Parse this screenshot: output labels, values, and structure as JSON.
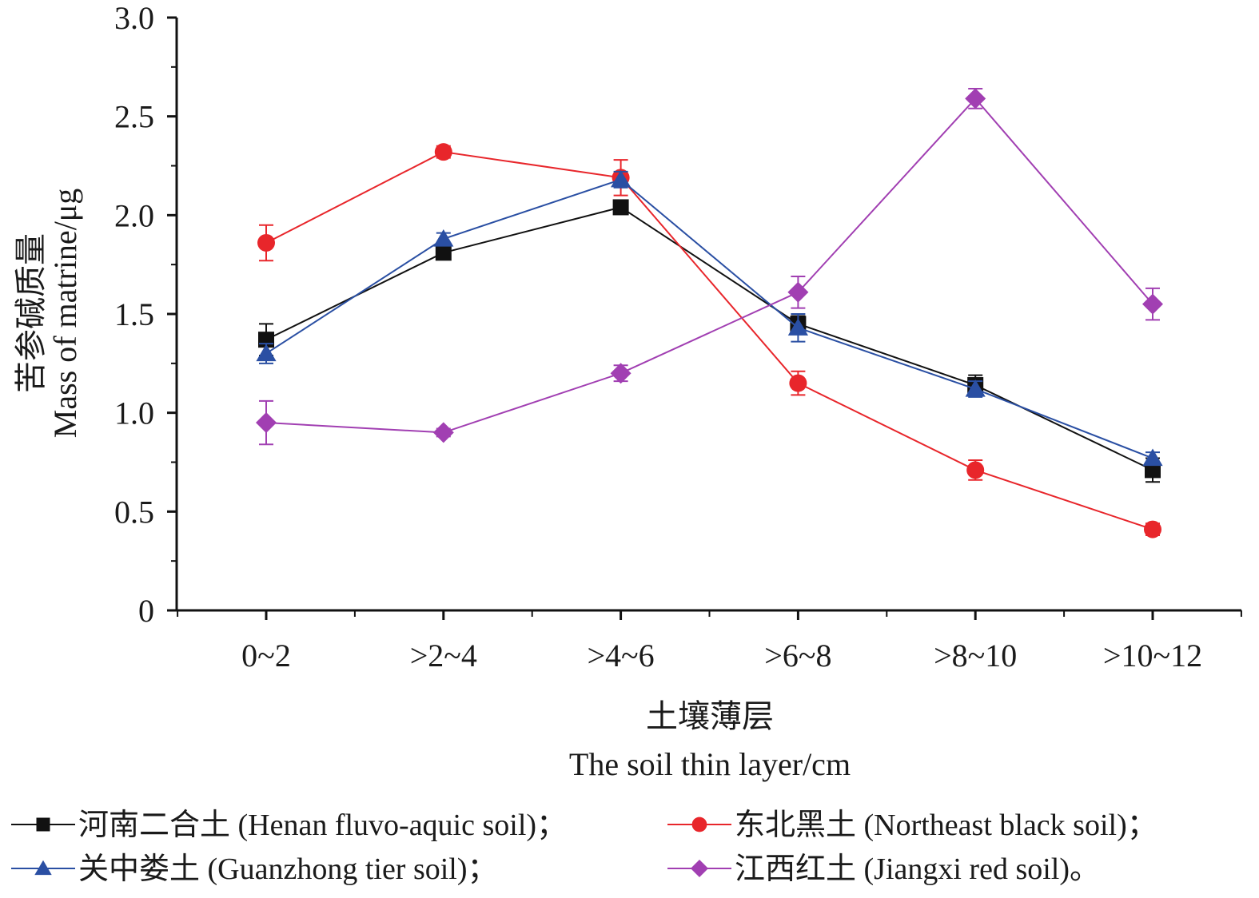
{
  "chart_data": {
    "type": "line",
    "title": "",
    "ylabel_cn": "苦参碱质量",
    "ylabel_en": "Mass of matrine/μg",
    "xlabel_cn": "土壤薄层",
    "xlabel_en": "The soil thin layer/cm",
    "categories": [
      "0~2",
      ">2~4",
      ">4~6",
      ">6~8",
      ">8~10",
      ">10~12"
    ],
    "ylim": [
      0,
      3.0
    ],
    "yticks": [
      0,
      0.5,
      1.0,
      1.5,
      2.0,
      2.5,
      3.0
    ],
    "ytick_labels": [
      "0",
      "0.5",
      "1.0",
      "1.5",
      "2.0",
      "2.5",
      "3.0"
    ],
    "grid": false,
    "legend_position": "bottom",
    "series": [
      {
        "name": "河南二合土 (Henan fluvo-aquic soil)；",
        "color": "#111111",
        "marker": "square",
        "values": [
          1.37,
          1.81,
          2.04,
          1.45,
          1.14,
          0.71
        ],
        "errors": [
          0.08,
          0.03,
          0.03,
          0.04,
          0.05,
          0.06
        ]
      },
      {
        "name": "东北黑土 (Northeast black soil)；",
        "color": "#e8262b",
        "marker": "circle",
        "values": [
          1.86,
          2.32,
          2.19,
          1.15,
          0.71,
          0.41
        ],
        "errors": [
          0.09,
          0.03,
          0.09,
          0.06,
          0.05,
          0.03
        ]
      },
      {
        "name": "关中娄土 (Guanzhong tier soil)；",
        "color": "#2a4fa3",
        "marker": "triangle",
        "values": [
          1.3,
          1.88,
          2.18,
          1.43,
          1.12,
          0.77
        ],
        "errors": [
          0.05,
          0.03,
          0.04,
          0.07,
          0.04,
          0.03
        ]
      },
      {
        "name": "江西红土 (Jiangxi red soil)。",
        "color": "#a13fb2",
        "marker": "diamond",
        "values": [
          0.95,
          0.9,
          1.2,
          1.61,
          2.59,
          1.55
        ],
        "errors": [
          0.11,
          0.02,
          0.04,
          0.08,
          0.05,
          0.08
        ]
      }
    ]
  }
}
